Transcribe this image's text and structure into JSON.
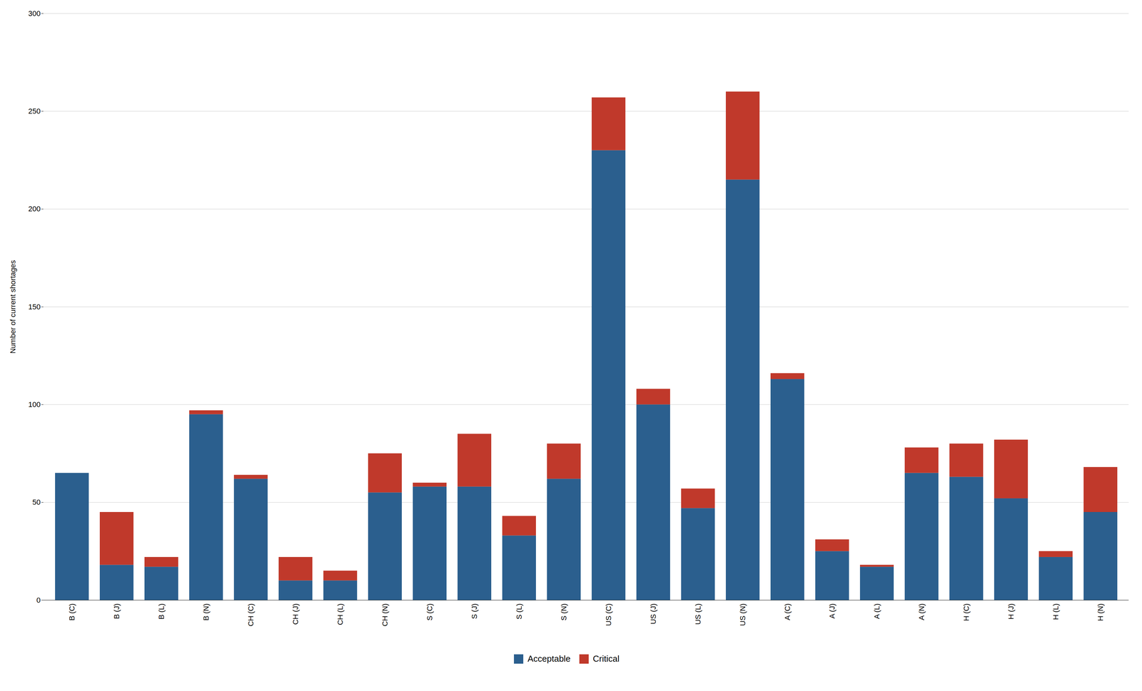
{
  "chart_data": {
    "type": "bar",
    "stacked": true,
    "categories": [
      "B (C)",
      "B (J)",
      "B (L)",
      "B (N)",
      "CH (C)",
      "CH (J)",
      "CH (L)",
      "CH (N)",
      "S (C)",
      "S (J)",
      "S (L)",
      "S (N)",
      "US (C)",
      "US (J)",
      "US (L)",
      "US (N)",
      "A (C)",
      "A (J)",
      "A (L)",
      "A (N)",
      "H (C)",
      "H (J)",
      "H (L)",
      "H (N)"
    ],
    "series": [
      {
        "name": "Acceptable",
        "color": "#2b5f8e",
        "values": [
          65,
          18,
          17,
          95,
          62,
          10,
          10,
          55,
          58,
          58,
          33,
          62,
          230,
          100,
          47,
          215,
          113,
          25,
          17,
          65,
          63,
          52,
          22,
          45
        ]
      },
      {
        "name": "Critical",
        "color": "#c0392b",
        "values": [
          0,
          27,
          5,
          2,
          2,
          12,
          5,
          20,
          2,
          27,
          10,
          18,
          27,
          8,
          10,
          45,
          3,
          6,
          1,
          13,
          17,
          30,
          3,
          23
        ]
      }
    ],
    "ylabel": "Number of current shortages",
    "ylim": [
      0,
      300
    ],
    "yticks": [
      0,
      50,
      100,
      150,
      200,
      250,
      300
    ],
    "grid": true,
    "legend": "bottom"
  }
}
